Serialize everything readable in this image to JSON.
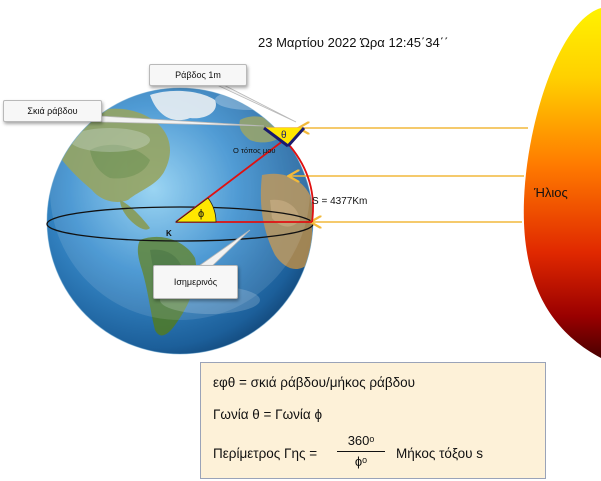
{
  "header": {
    "date_time": "23 Μαρτίου 2022  Ώρα 12:45΄34΄΄"
  },
  "labels": {
    "rod": "Ράβδος 1m",
    "rod_shadow": "Σκιά ράβδου",
    "my_place": "Ο τόπος μου",
    "theta": "θ",
    "phi": "ϕ",
    "center": "Κ",
    "arc_length": "S = 4377Km",
    "equator": "Ισημερινός",
    "sun": "Ήλιος"
  },
  "formulas": {
    "line1": "εφθ = σκιά ράβδου/μήκος ράβδου",
    "line2": "Γωνία θ = Γωνία ϕ",
    "line3_left": "Περίμετρος Γης =",
    "line3_num": "360ᵒ",
    "line3_den": "ϕᵒ",
    "line3_right": "Μήκος τόξου s"
  },
  "colors": {
    "sun_top": "#ffe600",
    "sun_mid": "#ff6a00",
    "sun_bottom": "#5a0000",
    "sunray": "#f2b93b",
    "radius": "#e01010",
    "angle_fill": "#ffe600",
    "rod": "#1a1a6e",
    "ocean": "#3b8fcf",
    "formula_bg": "#fdf1d8"
  }
}
